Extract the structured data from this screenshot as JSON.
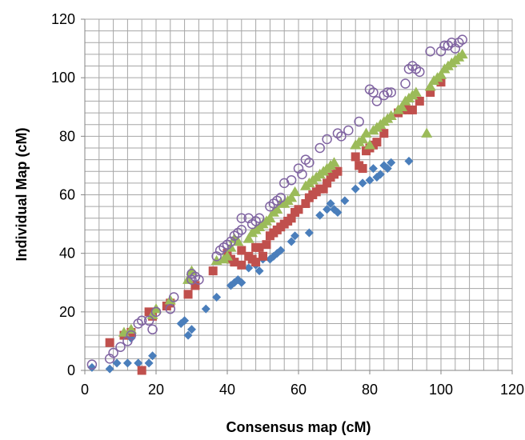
{
  "chart_data": {
    "type": "scatter",
    "title": "",
    "xlabel": "Consensus map (cM)",
    "ylabel": "Individual Map (cM)",
    "xlim": [
      0,
      120
    ],
    "ylim": [
      0,
      120
    ],
    "x_major_ticks": [
      0,
      20,
      40,
      60,
      80,
      100,
      120
    ],
    "y_major_ticks": [
      0,
      20,
      40,
      60,
      80,
      100,
      120
    ],
    "minor_grid_step": 4,
    "grid": true,
    "legend": "none",
    "series": [
      {
        "marker": "diamond",
        "color": "#4a7ebb",
        "points": [
          [
            2,
            1
          ],
          [
            7,
            0.5
          ],
          [
            9,
            2.5
          ],
          [
            12,
            2.5
          ],
          [
            13,
            11
          ],
          [
            15,
            2.5
          ],
          [
            18,
            2.5
          ],
          [
            19,
            5
          ],
          [
            27,
            16
          ],
          [
            28,
            17
          ],
          [
            29,
            12
          ],
          [
            30,
            14
          ],
          [
            34,
            21
          ],
          [
            37,
            25
          ],
          [
            41,
            29
          ],
          [
            42,
            30
          ],
          [
            43,
            31
          ],
          [
            44,
            30
          ],
          [
            46,
            35
          ],
          [
            48,
            36
          ],
          [
            49,
            34
          ],
          [
            50,
            38
          ],
          [
            52,
            38
          ],
          [
            53,
            39
          ],
          [
            54,
            40
          ],
          [
            55,
            41
          ],
          [
            58,
            44
          ],
          [
            59,
            46
          ],
          [
            63,
            47
          ],
          [
            66,
            53
          ],
          [
            68,
            55
          ],
          [
            69,
            57
          ],
          [
            70,
            55
          ],
          [
            71,
            54
          ],
          [
            73,
            58
          ],
          [
            76,
            62
          ],
          [
            78,
            64
          ],
          [
            80,
            65
          ],
          [
            81,
            69
          ],
          [
            82,
            66
          ],
          [
            83,
            67
          ],
          [
            84,
            70
          ],
          [
            85,
            69
          ],
          [
            86,
            71
          ],
          [
            91,
            71.5
          ]
        ]
      },
      {
        "marker": "square",
        "color": "#c0504d",
        "points": [
          [
            7,
            9.5
          ],
          [
            11,
            12
          ],
          [
            13,
            13
          ],
          [
            16,
            0
          ],
          [
            18,
            20
          ],
          [
            19,
            18.5
          ],
          [
            23,
            22
          ],
          [
            24,
            23
          ],
          [
            29,
            26
          ],
          [
            31,
            29
          ],
          [
            36,
            34
          ],
          [
            40,
            40
          ],
          [
            41,
            38
          ],
          [
            42,
            37
          ],
          [
            44,
            36
          ],
          [
            44,
            41
          ],
          [
            46,
            39
          ],
          [
            47,
            38
          ],
          [
            48,
            37
          ],
          [
            48,
            42
          ],
          [
            49,
            42
          ],
          [
            50,
            39
          ],
          [
            51,
            43
          ],
          [
            52,
            46
          ],
          [
            53,
            47
          ],
          [
            54,
            48
          ],
          [
            55,
            49
          ],
          [
            56,
            50
          ],
          [
            57,
            51
          ],
          [
            58,
            52
          ],
          [
            59,
            54
          ],
          [
            60,
            55
          ],
          [
            62,
            57
          ],
          [
            63,
            59
          ],
          [
            64,
            60
          ],
          [
            65,
            61
          ],
          [
            66,
            62
          ],
          [
            67,
            62
          ],
          [
            68,
            64
          ],
          [
            69,
            66
          ],
          [
            70,
            67
          ],
          [
            71,
            68
          ],
          [
            76,
            73
          ],
          [
            77,
            70
          ],
          [
            78,
            69
          ],
          [
            79,
            75
          ],
          [
            80,
            76
          ],
          [
            81,
            77
          ],
          [
            82,
            78
          ],
          [
            84,
            81
          ],
          [
            88,
            88
          ],
          [
            89,
            89
          ],
          [
            90,
            89.5
          ],
          [
            91,
            89
          ],
          [
            92,
            89
          ],
          [
            94,
            92
          ],
          [
            97,
            95
          ],
          [
            100,
            98.5
          ]
        ]
      },
      {
        "marker": "triangle",
        "color": "#9bbb59",
        "points": [
          [
            11,
            13
          ],
          [
            13,
            14
          ],
          [
            19,
            19
          ],
          [
            20,
            21
          ],
          [
            24,
            24
          ],
          [
            29,
            31
          ],
          [
            30,
            34
          ],
          [
            37,
            37.5
          ],
          [
            39,
            38
          ],
          [
            40,
            39
          ],
          [
            41,
            42
          ],
          [
            42,
            45
          ],
          [
            43,
            44
          ],
          [
            46,
            45
          ],
          [
            47,
            47
          ],
          [
            48,
            48
          ],
          [
            49,
            49
          ],
          [
            50,
            50
          ],
          [
            51,
            51
          ],
          [
            52,
            52
          ],
          [
            53,
            54
          ],
          [
            54,
            55
          ],
          [
            55,
            57
          ],
          [
            56,
            57
          ],
          [
            57,
            58
          ],
          [
            58,
            59
          ],
          [
            59,
            61
          ],
          [
            62,
            63
          ],
          [
            63,
            64
          ],
          [
            64,
            65
          ],
          [
            65,
            66
          ],
          [
            66,
            67
          ],
          [
            67,
            68
          ],
          [
            68,
            69
          ],
          [
            69,
            70
          ],
          [
            70,
            71
          ],
          [
            76,
            77
          ],
          [
            77,
            78
          ],
          [
            78,
            79
          ],
          [
            79,
            81
          ],
          [
            80,
            77
          ],
          [
            81,
            82
          ],
          [
            82,
            83
          ],
          [
            83,
            84
          ],
          [
            84,
            85
          ],
          [
            85,
            86
          ],
          [
            86,
            87
          ],
          [
            88,
            89
          ],
          [
            89,
            90
          ],
          [
            90,
            92
          ],
          [
            91,
            93
          ],
          [
            92,
            94
          ],
          [
            93,
            95
          ],
          [
            96,
            81
          ],
          [
            97,
            97
          ],
          [
            98,
            99
          ],
          [
            99,
            100
          ],
          [
            100,
            101
          ],
          [
            101,
            103
          ],
          [
            102,
            104
          ],
          [
            103,
            105
          ],
          [
            104,
            106
          ],
          [
            105,
            107
          ],
          [
            106,
            108
          ]
        ]
      },
      {
        "marker": "circle-open",
        "color": "#8064a2",
        "points": [
          [
            2,
            2
          ],
          [
            7,
            4
          ],
          [
            8,
            6
          ],
          [
            10,
            8
          ],
          [
            12,
            10
          ],
          [
            13,
            12
          ],
          [
            15,
            16
          ],
          [
            16,
            17
          ],
          [
            18,
            17
          ],
          [
            19,
            14
          ],
          [
            20,
            20
          ],
          [
            24,
            21
          ],
          [
            25,
            25
          ],
          [
            30,
            31
          ],
          [
            30,
            33
          ],
          [
            31,
            32
          ],
          [
            32,
            31
          ],
          [
            37,
            39
          ],
          [
            38,
            41
          ],
          [
            39,
            42
          ],
          [
            40,
            43
          ],
          [
            41,
            44
          ],
          [
            42,
            46
          ],
          [
            43,
            47
          ],
          [
            44,
            48
          ],
          [
            44,
            52
          ],
          [
            46,
            52
          ],
          [
            47,
            50
          ],
          [
            48,
            51
          ],
          [
            49,
            52
          ],
          [
            52,
            56
          ],
          [
            53,
            57
          ],
          [
            54,
            58
          ],
          [
            55,
            59
          ],
          [
            56,
            64
          ],
          [
            58,
            65
          ],
          [
            60,
            69
          ],
          [
            61,
            67
          ],
          [
            62,
            72
          ],
          [
            63,
            71
          ],
          [
            66,
            76
          ],
          [
            68,
            79
          ],
          [
            71,
            81
          ],
          [
            72,
            80
          ],
          [
            74,
            82
          ],
          [
            77,
            85
          ],
          [
            80,
            96
          ],
          [
            81,
            95
          ],
          [
            82,
            92
          ],
          [
            84,
            94
          ],
          [
            85,
            95
          ],
          [
            86,
            95
          ],
          [
            90,
            98
          ],
          [
            91,
            103
          ],
          [
            92,
            104
          ],
          [
            93,
            103
          ],
          [
            94,
            102
          ],
          [
            97,
            109
          ],
          [
            100,
            109
          ],
          [
            101,
            111
          ],
          [
            102,
            111
          ],
          [
            103,
            112
          ],
          [
            104,
            110
          ],
          [
            105,
            112
          ],
          [
            106,
            113
          ]
        ]
      }
    ]
  }
}
